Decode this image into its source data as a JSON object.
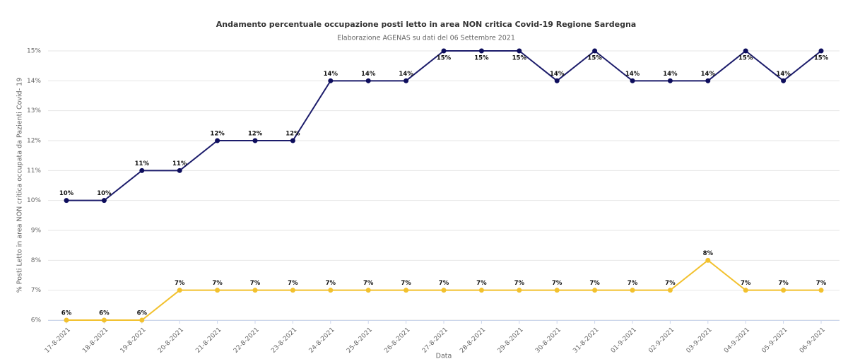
{
  "chart_data": {
    "type": "line",
    "title": "Andamento percentuale occupazione posti letto in area NON critica Covid-19 Regione Sardegna",
    "subtitle": "Elaborazione AGENAS su dati del 06 Settembre 2021",
    "y_label": "% Posti Letto in area NON critica occupata da Pazienti Covid- 19",
    "x_label": "Data",
    "categories": [
      "17-8-2021",
      "18-8-2021",
      "19-8-2021",
      "20-8-2021",
      "21-8-2021",
      "22-8-2021",
      "23-8-2021",
      "24-8-2021",
      "25-8-2021",
      "26-8-2021",
      "27-8-2021",
      "28-8-2021",
      "29-8-2021",
      "30-8-2021",
      "31-8-2021",
      "01-9-2021",
      "02-9-2021",
      "03-9-2021",
      "04-9-2021",
      "05-9-2021",
      "06-9-2021"
    ],
    "series": [
      {
        "color": "#1c1c6b",
        "values": [
          10,
          10,
          11,
          11,
          12,
          12,
          12,
          14,
          14,
          14,
          15,
          15,
          15,
          14,
          15,
          14,
          14,
          14,
          15,
          14,
          15
        ],
        "value_labels": [
          "10%",
          "10%",
          "11%",
          "11%",
          "12%",
          "12%",
          "12%",
          "14%",
          "14%",
          "14%",
          "15%",
          "15%",
          "15%",
          "14%",
          "15%",
          "14%",
          "14%",
          "14%",
          "15%",
          "14%",
          "15%"
        ]
      },
      {
        "color": "#f2c12e",
        "values": [
          6,
          6,
          6,
          7,
          7,
          7,
          7,
          7,
          7,
          7,
          7,
          7,
          7,
          7,
          7,
          7,
          7,
          8,
          7,
          7,
          7
        ],
        "value_labels": [
          "6%",
          "6%",
          "6%",
          "7%",
          "7%",
          "7%",
          "7%",
          "7%",
          "7%",
          "7%",
          "7%",
          "7%",
          "7%",
          "7%",
          "7%",
          "7%",
          "7%",
          "8%",
          "7%",
          "7%",
          "7%"
        ]
      }
    ],
    "ylim": [
      6,
      15
    ],
    "yticks": [
      {
        "value": 6,
        "label": "6%"
      },
      {
        "value": 7,
        "label": "7%"
      },
      {
        "value": 8,
        "label": "8%"
      },
      {
        "value": 9,
        "label": "9%"
      },
      {
        "value": 10,
        "label": "10%"
      },
      {
        "value": 11,
        "label": "11%"
      },
      {
        "value": 12,
        "label": "12%"
      },
      {
        "value": 13,
        "label": "13%"
      },
      {
        "value": 14,
        "label": "14%"
      },
      {
        "value": 15,
        "label": "15%"
      }
    ],
    "grid": true
  }
}
